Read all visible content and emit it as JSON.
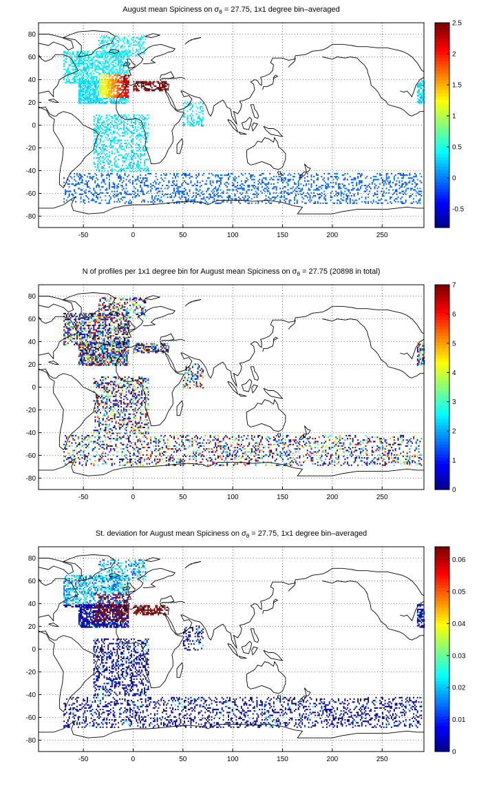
{
  "panels": [
    {
      "title_prefix": "August mean Spiciness on σ",
      "title_sub": "θ",
      "title_suffix": " = 27.75, 1x1 degree bin–averaged",
      "colorbar_ticks": [
        "2.5",
        "2",
        "1.5",
        "1",
        "0.5",
        "0",
        "-0.5"
      ],
      "colorbar_range": [
        -0.8,
        2.5
      ],
      "colormap": "jet"
    },
    {
      "title_prefix": "N of profiles per 1x1 degree bin for August mean Spiciness on σ",
      "title_sub": "θ",
      "title_suffix": " = 27.75 (20898 in total)",
      "colorbar_ticks": [
        "7",
        "6",
        "5",
        "4",
        "3",
        "2",
        "1",
        "0"
      ],
      "colorbar_range": [
        0,
        7
      ],
      "colormap": "jet"
    },
    {
      "title_prefix": "St. deviation for August mean Spiciness on σ",
      "title_sub": "θ",
      "title_suffix": " = 27.75, 1x1 degree bin–averaged",
      "colorbar_ticks": [
        "0.06",
        "0.05",
        "0.04",
        "0.03",
        "0.02",
        "0.01",
        "0"
      ],
      "colorbar_range": [
        0,
        0.064
      ],
      "colormap": "jet"
    }
  ],
  "axes": {
    "x_ticks": [
      "-50",
      "0",
      "50",
      "100",
      "150",
      "200",
      "250"
    ],
    "y_ticks": [
      "80",
      "60",
      "40",
      "20",
      "0",
      "-20",
      "-40",
      "-60",
      "-80"
    ],
    "xlim": [
      -95,
      292
    ],
    "ylim": [
      -90,
      90
    ],
    "grid": "dotted"
  }
}
